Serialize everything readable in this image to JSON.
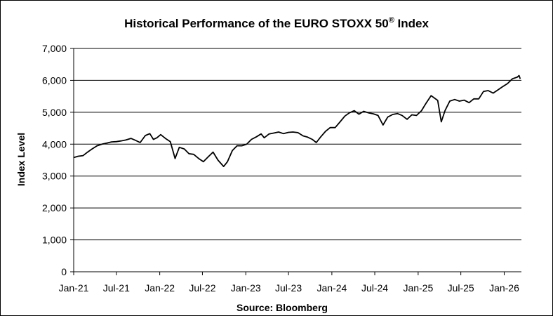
{
  "chart_data": {
    "type": "line",
    "title": "Historical Performance of the EURO STOXX 50",
    "title_superscript": "®",
    "title_suffix": " Index",
    "ylabel": "Index Level",
    "xlabel": "Source: Bloomberg",
    "ylim": [
      0,
      7000
    ],
    "yticks": [
      0,
      1000,
      2000,
      3000,
      4000,
      5000,
      6000,
      7000
    ],
    "ytick_labels": [
      "0",
      "1,000",
      "2,000",
      "3,000",
      "4,000",
      "5,000",
      "6,000",
      "7,000"
    ],
    "xlim": [
      "2021-01-01",
      "2026-03-15"
    ],
    "xticks": [
      "2021-01-01",
      "2021-07-01",
      "2022-01-01",
      "2022-07-01",
      "2023-01-01",
      "2023-07-01",
      "2024-01-01",
      "2024-07-01",
      "2025-01-01",
      "2025-07-01",
      "2026-01-01"
    ],
    "xtick_labels": [
      "Jan-21",
      "Jul-21",
      "Jan-22",
      "Jul-22",
      "Jan-23",
      "Jul-23",
      "Jan-24",
      "Jul-24",
      "Jan-25",
      "Jul-25",
      "Jan-26"
    ],
    "grid": "horizontal",
    "legend": "none",
    "line_color": "#000000",
    "series": [
      {
        "x": [
          "2021-01-01",
          "2021-01-20",
          "2021-02-10",
          "2021-03-01",
          "2021-03-20",
          "2021-04-10",
          "2021-05-01",
          "2021-05-20",
          "2021-06-10",
          "2021-07-01",
          "2021-07-20",
          "2021-08-10",
          "2021-09-01",
          "2021-09-20",
          "2021-10-10",
          "2021-11-01",
          "2021-11-20",
          "2021-12-05",
          "2021-12-20",
          "2022-01-05",
          "2022-01-25",
          "2022-02-15",
          "2022-03-07",
          "2022-03-25",
          "2022-04-15",
          "2022-05-05",
          "2022-05-25",
          "2022-06-15",
          "2022-07-05",
          "2022-07-25",
          "2022-08-15",
          "2022-09-05",
          "2022-09-29",
          "2022-10-15",
          "2022-11-05",
          "2022-11-25",
          "2022-12-15",
          "2023-01-05",
          "2023-01-25",
          "2023-02-15",
          "2023-03-07",
          "2023-03-20",
          "2023-04-10",
          "2023-05-01",
          "2023-05-20",
          "2023-06-10",
          "2023-07-01",
          "2023-07-20",
          "2023-08-10",
          "2023-09-01",
          "2023-09-20",
          "2023-10-10",
          "2023-10-27",
          "2023-11-15",
          "2023-12-05",
          "2023-12-25",
          "2024-01-15",
          "2024-02-05",
          "2024-02-25",
          "2024-03-15",
          "2024-04-05",
          "2024-04-25",
          "2024-05-15",
          "2024-06-05",
          "2024-06-25",
          "2024-07-15",
          "2024-08-05",
          "2024-08-25",
          "2024-09-15",
          "2024-10-05",
          "2024-10-25",
          "2024-11-15",
          "2024-12-05",
          "2024-12-25",
          "2025-01-15",
          "2025-02-05",
          "2025-02-25",
          "2025-03-10",
          "2025-03-25",
          "2025-04-09",
          "2025-04-25",
          "2025-05-15",
          "2025-06-05",
          "2025-06-25",
          "2025-07-15",
          "2025-08-05",
          "2025-08-25",
          "2025-09-15",
          "2025-10-05",
          "2025-10-25",
          "2025-11-15",
          "2025-12-05",
          "2025-12-25",
          "2026-01-15",
          "2026-02-05",
          "2026-02-25",
          "2026-03-05",
          "2026-03-10"
        ],
        "y": [
          3580,
          3620,
          3640,
          3750,
          3850,
          3950,
          4000,
          4030,
          4070,
          4080,
          4100,
          4130,
          4180,
          4120,
          4050,
          4270,
          4330,
          4150,
          4200,
          4300,
          4180,
          4080,
          3550,
          3900,
          3850,
          3700,
          3680,
          3550,
          3450,
          3600,
          3750,
          3500,
          3300,
          3450,
          3800,
          3950,
          3950,
          4000,
          4150,
          4230,
          4320,
          4200,
          4320,
          4350,
          4380,
          4330,
          4370,
          4380,
          4360,
          4260,
          4220,
          4150,
          4050,
          4230,
          4400,
          4520,
          4520,
          4700,
          4880,
          4980,
          5050,
          4940,
          5030,
          4980,
          4950,
          4900,
          4600,
          4850,
          4930,
          4960,
          4900,
          4780,
          4920,
          4900,
          5050,
          5300,
          5520,
          5450,
          5370,
          4700,
          5050,
          5350,
          5400,
          5350,
          5380,
          5300,
          5420,
          5420,
          5650,
          5680,
          5600,
          5700,
          5800,
          5900,
          6050,
          6100,
          6150,
          6050
        ]
      }
    ]
  }
}
